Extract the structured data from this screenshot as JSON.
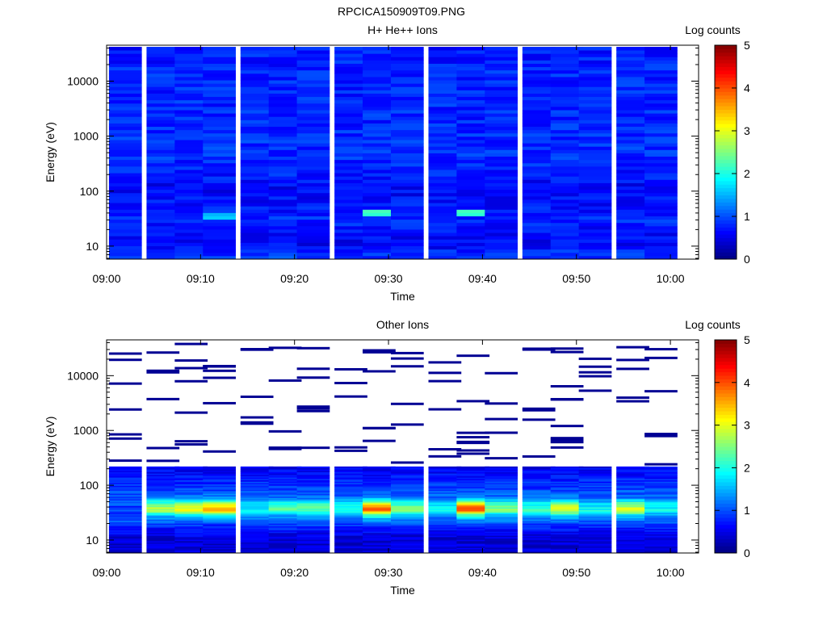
{
  "figure_title": "RPCICA150909T09.PNG",
  "chart_data": [
    {
      "type": "heatmap",
      "title": "H+ He++ Ions",
      "xlabel": "Time",
      "ylabel": "Energy (eV)",
      "x_ticks": [
        "09:00",
        "09:10",
        "09:20",
        "09:30",
        "09:40",
        "09:50",
        "10:00"
      ],
      "x_range": [
        "09:00",
        "10:03"
      ],
      "y_scale": "log",
      "y_ticks": [
        10,
        100,
        1000,
        10000
      ],
      "y_range": [
        5.8,
        45000
      ],
      "colorbar": {
        "label": "Log counts",
        "range": [
          0,
          5
        ],
        "ticks": [
          0,
          1,
          2,
          3,
          4,
          5
        ],
        "colormap": "jet"
      },
      "time_columns": [
        "09:02",
        "09:06",
        "09:09",
        "09:12",
        "09:16",
        "09:19",
        "09:22",
        "09:26",
        "09:29",
        "09:32",
        "09:36",
        "09:39",
        "09:42",
        "09:46",
        "09:49",
        "09:52",
        "09:56",
        "09:59"
      ],
      "energy_range": [
        5.8,
        42000
      ],
      "energy_profile": {
        "energy_eV": [
          7,
          10,
          15,
          22,
          30,
          40,
          55,
          80,
          120,
          200,
          500,
          2000,
          10000,
          40000
        ],
        "log_counts": [
          0.9,
          0.6,
          0.65,
          0.7,
          0.85,
          0.75,
          0.7,
          0.65,
          0.6,
          0.75,
          0.85,
          0.8,
          0.8,
          0.75
        ]
      },
      "features": [
        {
          "time": "09:29",
          "energy_eV": 42,
          "log_counts": 2.3
        },
        {
          "time": "09:39",
          "energy_eV": 42,
          "log_counts": 2.2
        },
        {
          "time": "09:12",
          "energy_eV": 36,
          "log_counts": 1.6
        }
      ]
    },
    {
      "type": "heatmap",
      "title": "Other Ions",
      "xlabel": "Time",
      "ylabel": "Energy (eV)",
      "x_ticks": [
        "09:00",
        "09:10",
        "09:20",
        "09:30",
        "09:40",
        "09:50",
        "10:00"
      ],
      "x_range": [
        "09:00",
        "10:03"
      ],
      "y_scale": "log",
      "y_ticks": [
        10,
        100,
        1000,
        10000
      ],
      "y_range": [
        5.8,
        45000
      ],
      "colorbar": {
        "label": "Log counts",
        "range": [
          0,
          5
        ],
        "ticks": [
          0,
          1,
          2,
          3,
          4,
          5
        ],
        "colormap": "jet"
      },
      "time_columns": [
        "09:02",
        "09:06",
        "09:09",
        "09:12",
        "09:16",
        "09:19",
        "09:22",
        "09:26",
        "09:29",
        "09:32",
        "09:36",
        "09:39",
        "09:42",
        "09:46",
        "09:49",
        "09:52",
        "09:56",
        "09:59"
      ],
      "energy_range": [
        5.8,
        220
      ],
      "energy_profile": {
        "energy_eV": [
          7,
          10,
          14,
          20,
          28,
          35,
          45,
          60,
          90,
          150,
          210
        ],
        "log_counts": [
          0.45,
          0.4,
          0.6,
          0.95,
          1.6,
          2.9,
          2.5,
          1.2,
          0.9,
          0.7,
          0.55
        ]
      },
      "column_peak_log_counts": [
        1.0,
        2.9,
        3.2,
        3.5,
        2.0,
        2.4,
        2.4,
        2.0,
        4.0,
        2.6,
        2.0,
        4.0,
        2.6,
        2.2,
        3.0,
        2.0,
        3.0,
        2.0
      ],
      "sparse_high_energy_counts": "isolated single-count lines from 250 eV to 40000 eV in every time column"
    }
  ]
}
